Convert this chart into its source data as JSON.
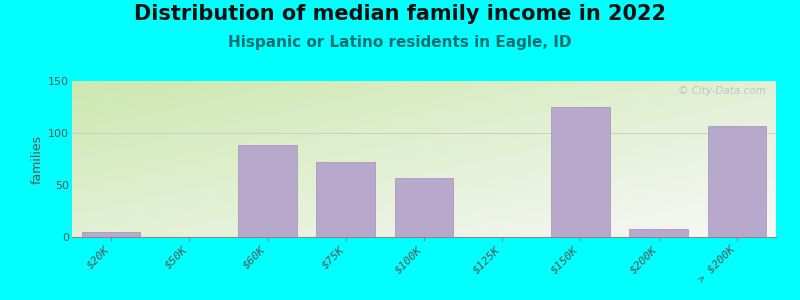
{
  "title": "Distribution of median family income in 2022",
  "subtitle": "Hispanic or Latino residents in Eagle, ID",
  "ylabel": "families",
  "background_color": "#00FFFF",
  "bar_color": "#b8a8cc",
  "bar_edge_color": "#a090bb",
  "categories": [
    "$20K",
    "$50K",
    "$60K",
    "$75K",
    "$100K",
    "$125K",
    "$150K",
    "$200K",
    "> $200K"
  ],
  "values": [
    5,
    0,
    88,
    72,
    57,
    0,
    125,
    8,
    107
  ],
  "ylim": [
    0,
    150
  ],
  "yticks": [
    0,
    50,
    100,
    150
  ],
  "watermark": "© City-Data.com",
  "title_fontsize": 15,
  "subtitle_fontsize": 11,
  "subtitle_color": "#007070",
  "ylabel_fontsize": 9,
  "tick_fontsize": 8,
  "gradient_color_topleft": "#cce8b0",
  "gradient_color_bottomright": "#f8f8f8"
}
